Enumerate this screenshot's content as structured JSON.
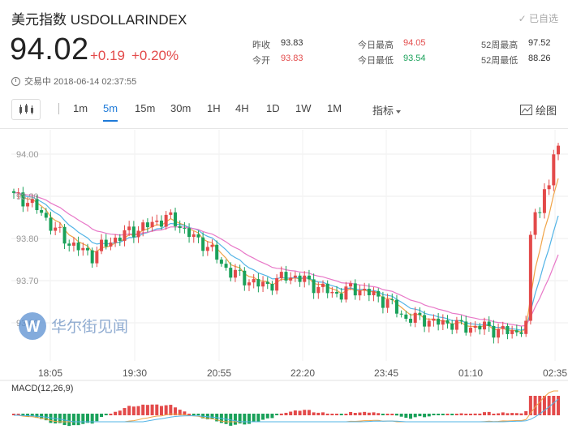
{
  "header": {
    "title": "美元指数 USDOLLARINDEX",
    "added_label": "已自选",
    "price": "94.02",
    "change": "+0.19",
    "change_pct": "+0.20%",
    "status": "交易中 2018-06-14 02:37:55"
  },
  "stats": [
    {
      "label": "昨收",
      "value": "93.83",
      "color": "#333333"
    },
    {
      "label": "今开",
      "value": "93.83",
      "color": "#e34a4a"
    },
    {
      "label": "今日最高",
      "value": "94.05",
      "color": "#e34a4a"
    },
    {
      "label": "今日最低",
      "value": "93.54",
      "color": "#1aa15a"
    },
    {
      "label": "52周最高",
      "value": "97.52",
      "color": "#333333"
    },
    {
      "label": "52周最低",
      "value": "88.26",
      "color": "#333333"
    }
  ],
  "toolbar": {
    "chart_type_icon": "candlestick-icon",
    "tabs": [
      "1m",
      "5m",
      "15m",
      "30m",
      "1H",
      "4H",
      "1D",
      "1W",
      "1M"
    ],
    "active_tab": "5m",
    "indicator_label": "指标",
    "draw_label": "绘图",
    "draw_icon": "draw-tool-icon"
  },
  "watermark": "华尔街见闻",
  "colors": {
    "up": "#e34a4a",
    "down": "#1aa15a",
    "accent": "#1e7ad8"
  },
  "chart_data": {
    "type": "candlestick",
    "y_ticks": [
      "94.00",
      "93.90",
      "93.80",
      "93.70",
      "93.60"
    ],
    "x_ticks": [
      "18:05",
      "19:30",
      "20:55",
      "22:20",
      "23:45",
      "01:10",
      "02:35"
    ],
    "ylim": [
      93.54,
      94.05
    ],
    "close_path": [
      [
        0,
        93.9
      ],
      [
        3,
        93.89
      ],
      [
        6,
        93.86
      ],
      [
        9,
        93.82
      ],
      [
        12,
        93.79
      ],
      [
        15,
        93.77
      ],
      [
        17,
        93.76
      ],
      [
        19,
        93.78
      ],
      [
        22,
        93.8
      ],
      [
        24,
        93.81
      ],
      [
        26,
        93.82
      ],
      [
        29,
        93.83
      ],
      [
        31,
        93.84
      ],
      [
        33,
        93.85
      ],
      [
        35,
        93.84
      ],
      [
        37,
        93.82
      ],
      [
        39,
        93.8
      ],
      [
        41,
        93.79
      ],
      [
        43,
        93.77
      ],
      [
        45,
        93.74
      ],
      [
        47,
        93.72
      ],
      [
        49,
        93.71
      ],
      [
        51,
        93.7
      ],
      [
        53,
        93.69
      ],
      [
        55,
        93.69
      ],
      [
        57,
        93.7
      ],
      [
        59,
        93.71
      ],
      [
        61,
        93.71
      ],
      [
        63,
        93.7
      ],
      [
        65,
        93.69
      ],
      [
        67,
        93.68
      ],
      [
        69,
        93.67
      ],
      [
        71,
        93.67
      ],
      [
        73,
        93.68
      ],
      [
        75,
        93.68
      ],
      [
        77,
        93.67
      ],
      [
        79,
        93.66
      ],
      [
        81,
        93.65
      ],
      [
        83,
        93.63
      ],
      [
        85,
        93.61
      ],
      [
        87,
        93.61
      ],
      [
        89,
        93.61
      ],
      [
        91,
        93.6
      ],
      [
        93,
        93.6
      ],
      [
        95,
        93.6
      ],
      [
        97,
        93.59
      ],
      [
        99,
        93.59
      ],
      [
        101,
        93.59
      ],
      [
        103,
        93.59
      ],
      [
        105,
        93.58
      ],
      [
        107,
        93.58
      ],
      [
        109,
        93.58
      ],
      [
        111,
        93.59
      ],
      [
        112,
        93.8
      ],
      [
        113,
        93.88
      ],
      [
        114,
        93.86
      ],
      [
        115,
        93.91
      ],
      [
        116,
        93.93
      ],
      [
        117,
        93.99
      ],
      [
        118,
        94.02
      ]
    ],
    "macd_label": "MACD(12,26,9)"
  }
}
